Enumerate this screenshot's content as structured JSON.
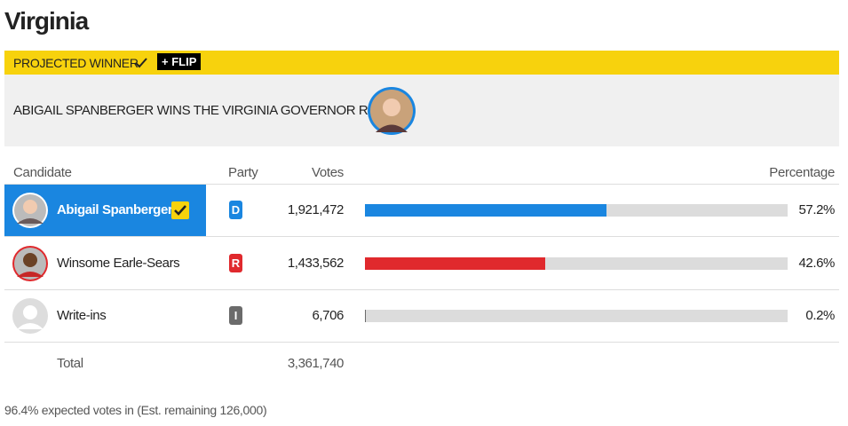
{
  "title": "Virginia",
  "banner": {
    "label": "PROJECTED WINNER",
    "flip": "+ FLIP"
  },
  "headline": "ABIGAIL SPANBERGER WINS THE VIRGINIA GOVERNOR RACE",
  "table": {
    "headers": {
      "candidate": "Candidate",
      "party": "Party",
      "votes": "Votes",
      "percentage": "Percentage"
    },
    "rows": [
      {
        "name": "Abigail Spanberger",
        "party": "D",
        "votes": "1,921,472",
        "percentage": 57.2,
        "percentage_label": "57.2%",
        "color": "#1a86e0",
        "winner": true
      },
      {
        "name": "Winsome Earle-Sears",
        "party": "R",
        "votes": "1,433,562",
        "percentage": 42.6,
        "percentage_label": "42.6%",
        "color": "#e0292d",
        "winner": false
      },
      {
        "name": "Write-ins",
        "party": "I",
        "votes": "6,706",
        "percentage": 0.2,
        "percentage_label": "0.2%",
        "color": "#6b6b6b",
        "winner": false
      }
    ],
    "total": {
      "label": "Total",
      "votes": "3,361,740"
    }
  },
  "footer": "96.4% expected votes in (Est. remaining 126,000)"
}
